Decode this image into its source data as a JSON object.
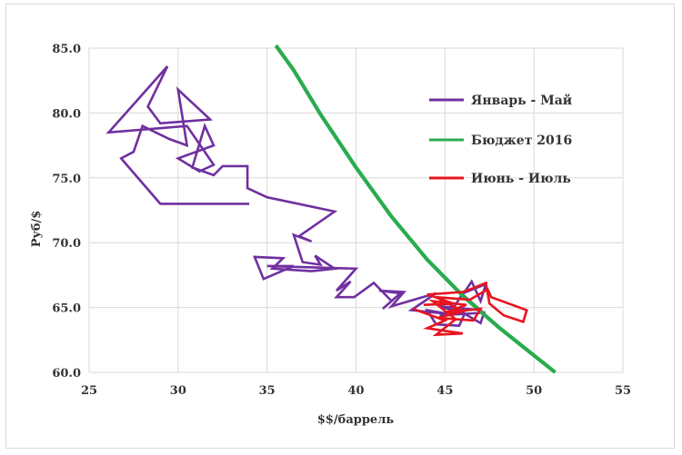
{
  "chart_data": {
    "type": "line",
    "title": "",
    "xlabel": "$$/баррель",
    "ylabel": "Руб/$",
    "xlim": [
      25,
      55
    ],
    "ylim": [
      60,
      85
    ],
    "x_ticks": [
      "25",
      "30",
      "35",
      "40",
      "45",
      "50",
      "55"
    ],
    "y_ticks": [
      "60.0",
      "65.0",
      "70.0",
      "75.0",
      "80.0",
      "85.0"
    ],
    "grid": true,
    "legend_position": "right",
    "series": [
      {
        "name": "Январь - Май",
        "color": "#7030a0",
        "points": [
          [
            34.0,
            73.0
          ],
          [
            29.0,
            73.0
          ],
          [
            26.8,
            76.5
          ],
          [
            27.5,
            77.0
          ],
          [
            28.0,
            79.0
          ],
          [
            29.5,
            78.0
          ],
          [
            30.5,
            77.5
          ],
          [
            30.0,
            81.8
          ],
          [
            31.8,
            79.5
          ],
          [
            29.0,
            79.2
          ],
          [
            28.3,
            80.5
          ],
          [
            29.4,
            83.6
          ],
          [
            26.1,
            78.5
          ],
          [
            30.5,
            79.0
          ],
          [
            32.0,
            76.0
          ],
          [
            31.2,
            75.5
          ],
          [
            30.0,
            76.5
          ],
          [
            32.0,
            77.5
          ],
          [
            31.5,
            79.0
          ],
          [
            30.8,
            75.8
          ],
          [
            32.0,
            75.2
          ],
          [
            32.5,
            75.9
          ],
          [
            33.9,
            75.9
          ],
          [
            33.9,
            74.2
          ],
          [
            35.0,
            73.5
          ],
          [
            38.8,
            72.4
          ],
          [
            36.8,
            70.5
          ],
          [
            37.5,
            70.1
          ],
          [
            36.5,
            70.6
          ],
          [
            37.0,
            68.5
          ],
          [
            38.0,
            68.3
          ],
          [
            37.7,
            69.0
          ],
          [
            38.8,
            68.0
          ],
          [
            37.5,
            67.8
          ],
          [
            35.3,
            68.0
          ],
          [
            35.9,
            68.8
          ],
          [
            34.3,
            68.9
          ],
          [
            34.8,
            67.2
          ],
          [
            36.5,
            68.2
          ],
          [
            35.0,
            68.2
          ],
          [
            40.0,
            68.0
          ],
          [
            38.9,
            66.3
          ],
          [
            39.7,
            67.0
          ],
          [
            38.9,
            65.8
          ],
          [
            39.9,
            65.8
          ],
          [
            41.0,
            66.9
          ],
          [
            42.0,
            65.5
          ],
          [
            41.5,
            64.9
          ],
          [
            42.5,
            66.1
          ],
          [
            41.3,
            66.3
          ],
          [
            42.7,
            66.2
          ],
          [
            42.0,
            65.1
          ],
          [
            44.5,
            66.1
          ],
          [
            43.1,
            64.8
          ],
          [
            45.2,
            64.5
          ],
          [
            44.0,
            64.8
          ],
          [
            44.5,
            63.7
          ],
          [
            45.8,
            63.6
          ],
          [
            46.1,
            64.5
          ],
          [
            44.7,
            65.1
          ],
          [
            47.0,
            64.8
          ],
          [
            46.0,
            66.0
          ],
          [
            46.5,
            67.0
          ],
          [
            47.0,
            65.5
          ],
          [
            47.3,
            66.8
          ],
          [
            46.0,
            66.1
          ],
          [
            45.5,
            65.0
          ],
          [
            47.0,
            63.8
          ],
          [
            47.2,
            64.6
          ],
          [
            44.7,
            64.4
          ]
        ]
      },
      {
        "name": "Бюджет 2016",
        "color": "#2aab4e",
        "points": [
          [
            35.5,
            85.2
          ],
          [
            36.5,
            83.3
          ],
          [
            38.0,
            79.9
          ],
          [
            40.0,
            75.8
          ],
          [
            42.0,
            72.0
          ],
          [
            44.0,
            68.7
          ],
          [
            46.0,
            65.9
          ],
          [
            48.0,
            63.5
          ],
          [
            50.0,
            61.3
          ],
          [
            51.2,
            60.0
          ]
        ]
      },
      {
        "name": "Июнь - Июль",
        "color": "#e8141e",
        "points": [
          [
            43.2,
            64.9
          ],
          [
            45.0,
            64.0
          ],
          [
            44.0,
            63.4
          ],
          [
            46.0,
            63.0
          ],
          [
            44.5,
            62.9
          ],
          [
            45.6,
            64.1
          ],
          [
            44.3,
            65.5
          ],
          [
            46.2,
            65.2
          ],
          [
            45.0,
            64.6
          ],
          [
            47.0,
            64.9
          ],
          [
            46.6,
            64.0
          ],
          [
            44.6,
            64.2
          ],
          [
            46.0,
            64.7
          ],
          [
            44.5,
            65.8
          ],
          [
            46.4,
            65.6
          ],
          [
            47.4,
            66.4
          ],
          [
            47.6,
            65.8
          ],
          [
            49.6,
            64.8
          ],
          [
            49.4,
            63.9
          ],
          [
            48.3,
            64.4
          ],
          [
            47.5,
            65.3
          ],
          [
            47.3,
            66.9
          ],
          [
            46.6,
            66.5
          ],
          [
            46.0,
            66.2
          ],
          [
            44.0,
            66.0
          ],
          [
            45.5,
            65.3
          ],
          [
            43.8,
            65.2
          ]
        ]
      }
    ]
  }
}
